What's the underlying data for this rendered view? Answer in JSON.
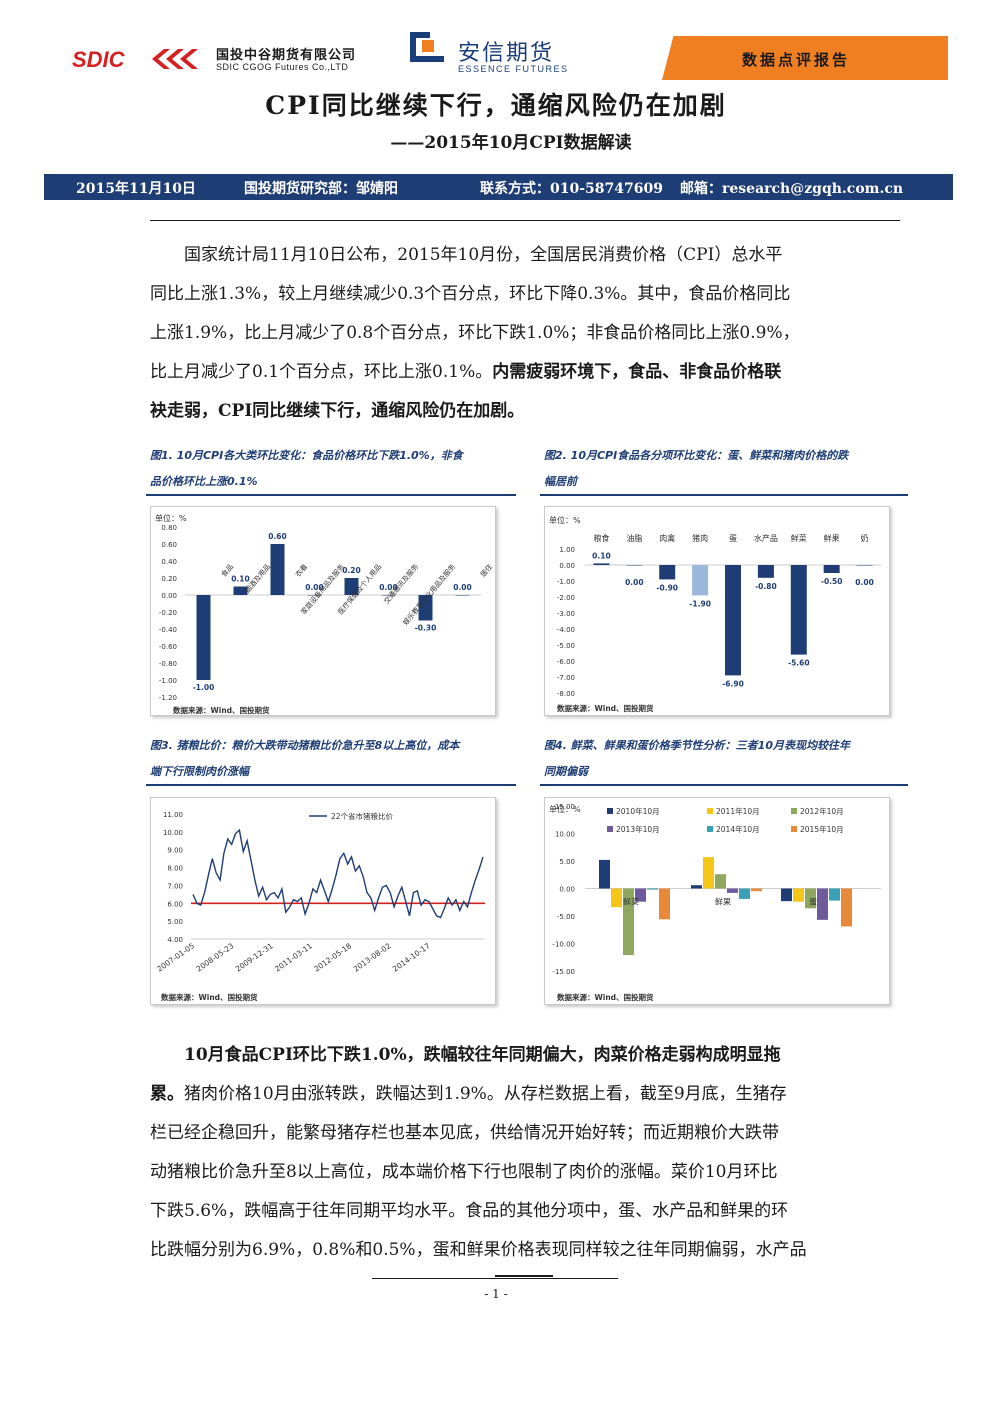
{
  "header": {
    "sdic_logo_text": "SDIC",
    "sdic_name": "国投中谷期货有限公司",
    "sdic_name_en": "SDIC CGOG Futures Co.,LTD",
    "essence_name": "安信期货",
    "essence_name_en": "ESSENCE FUTURES",
    "report_type": "数据点评报告"
  },
  "title": "CPI同比继续下行，通缩风险仍在加剧",
  "subtitle": "——2015年10月CPI数据解读",
  "info_bar": {
    "date": "2015年11月10日",
    "department": "国投期货研究部：邹婧阳",
    "contact": "联系方式：010-58747609",
    "email": "邮箱：research@zgqh.com.cn"
  },
  "paragraph1": {
    "lines": [
      "国家统计局11月10日公布，2015年10月份，全国居民消费价格（CPI）总水平",
      "同比上涨1.3%，较上月继续减少0.3个百分点，环比下降0.3%。其中，食品价格同比",
      "上涨1.9%，比上月减少了0.8个百分点，环比下跌1.0%；非食品价格同比上涨0.9%，"
    ],
    "line4_normal": "比上月减少了0.1个百分点，环比上涨0.1%。",
    "line4_bold": "内需疲弱环境下，食品、非食品价格联",
    "line5_bold": "袂走弱，CPI同比继续下行，通缩风险仍在加剧。"
  },
  "figures": {
    "fig1_caption": [
      "图1. 10月CPI各大类环比变化：食品价格环比下跌1.0%，非食",
      "品价格环比上涨0.1%"
    ],
    "fig2_caption": [
      "图2. 10月CPI食品各分项环比变化：蛋、鲜菜和猪肉价格的跌",
      "幅居前"
    ],
    "fig3_caption": [
      "图3. 猪粮比价：粮价大跌带动猪粮比价急升至8以上高位，成本",
      "端下行限制肉价涨幅"
    ],
    "fig4_caption": [
      "图4. 鲜菜、鲜果和蛋价格季节性分析：三者10月表现均较往年",
      "同期偏弱"
    ],
    "source": "数据来源：Wind、国投期货"
  },
  "chart_data": [
    {
      "type": "bar",
      "unit_label": "单位：%",
      "categories": [
        "食品",
        "烟酒及用品",
        "衣着",
        "家庭设备用品及服务",
        "医疗保健及个人用品",
        "交通通讯及服务",
        "娱乐教育文化用品及服务",
        "居住"
      ],
      "values": [
        -1.0,
        0.1,
        0.6,
        0.0,
        0.2,
        0.0,
        -0.3,
        0.0
      ],
      "data_labels": [
        "-1.00",
        "0.10",
        "0.60",
        "0.00",
        "0.20",
        "0.00",
        "-0.30",
        "0.00"
      ],
      "ylim": [
        -1.2,
        0.8
      ],
      "yticks": [
        "0.80",
        "0.60",
        "0.40",
        "0.20",
        "0.00",
        "-0.20",
        "-0.40",
        "-0.60",
        "-0.80",
        "-1.00",
        "-1.20"
      ],
      "color": "#1f3d75"
    },
    {
      "type": "bar",
      "unit_label": "单位：%",
      "categories": [
        "粮食",
        "油脂",
        "肉禽",
        "猪肉",
        "蛋",
        "水产品",
        "鲜菜",
        "鲜果",
        "奶"
      ],
      "values": [
        0.1,
        0.0,
        -0.9,
        -1.9,
        -6.9,
        -0.8,
        -5.6,
        -0.5,
        0.0
      ],
      "data_labels": [
        "0.10",
        "0.00",
        "-0.90",
        "-1.90",
        "-6.90",
        "-0.80",
        "-5.60",
        "-0.50",
        "0.00"
      ],
      "ylim": [
        -8,
        1
      ],
      "yticks": [
        "1.00",
        "0.00",
        "-1.00",
        "-2.00",
        "-3.00",
        "-4.00",
        "-5.00",
        "-6.00",
        "-7.00",
        "-8.00"
      ],
      "colors": [
        "#1f3d75",
        "#1f3d75",
        "#1f3d75",
        "#9bb7da",
        "#1f3d75",
        "#1f3d75",
        "#1f3d75",
        "#1f3d75",
        "#1f3d75"
      ]
    },
    {
      "type": "line",
      "legend": "22个省市猪粮比价",
      "x_tick_labels": [
        "2007-01-05",
        "2008-05-23",
        "2009-12-31",
        "2011-03-11",
        "2012-05-18",
        "2013-08-02",
        "2014-10-17"
      ],
      "ylim": [
        4,
        11
      ],
      "yticks": [
        "11.00",
        "10.00",
        "9.00",
        "8.00",
        "7.00",
        "6.00",
        "5.00",
        "4.00"
      ],
      "reference_line": 6.0,
      "reference_color": "#d42020",
      "line_color": "#1f3d75",
      "values": [
        6.5,
        6.0,
        5.9,
        6.6,
        7.6,
        8.5,
        7.7,
        7.3,
        8.8,
        9.6,
        9.3,
        9.9,
        10.1,
        8.9,
        9.5,
        8.4,
        7.3,
        6.4,
        6.9,
        6.2,
        6.5,
        6.6,
        6.3,
        6.8,
        5.5,
        5.8,
        6.2,
        6.1,
        6.3,
        5.4,
        6.0,
        6.8,
        6.6,
        7.3,
        6.7,
        6.1,
        6.8,
        7.6,
        8.5,
        8.8,
        8.2,
        8.6,
        7.8,
        8.1,
        7.5,
        6.6,
        6.3,
        5.6,
        6.3,
        6.9,
        7.0,
        6.6,
        5.8,
        6.4,
        6.9,
        6.1,
        5.3,
        6.6,
        6.7,
        5.9,
        6.2,
        6.1,
        5.7,
        5.3,
        5.2,
        5.7,
        6.3,
        5.9,
        6.2,
        5.6,
        6.1,
        5.8,
        6.6,
        7.3,
        7.9,
        8.6
      ]
    },
    {
      "type": "bar",
      "unit_label": "单位：%",
      "categories": [
        "鲜菜",
        "鲜果",
        "蛋"
      ],
      "series": [
        {
          "name": "2010年10月",
          "color": "#1f3d75",
          "values": [
            5.2,
            0.6,
            -2.3
          ]
        },
        {
          "name": "2011年10月",
          "color": "#f5c518",
          "values": [
            -3.4,
            5.7,
            -2.4
          ]
        },
        {
          "name": "2012年10月",
          "color": "#8fa860",
          "values": [
            -12.1,
            2.6,
            -3.6
          ]
        },
        {
          "name": "2013年10月",
          "color": "#6f5a9e",
          "values": [
            -2.4,
            -0.8,
            -5.7
          ]
        },
        {
          "name": "2014年10月",
          "color": "#3aa0b6",
          "values": [
            -0.2,
            -1.9,
            -2.2
          ]
        },
        {
          "name": "2015年10月",
          "color": "#e8893a",
          "values": [
            -5.6,
            -0.5,
            -6.9
          ]
        }
      ],
      "ylim": [
        -15,
        15
      ],
      "yticks": [
        "15.00",
        "10.00",
        "5.00",
        "0.00",
        "-5.00",
        "-10.00",
        "-15.00"
      ]
    }
  ],
  "paragraph2": {
    "line1_bold": "10月食品CPI环比下跌1.0%，跌幅较往年同期偏大，肉菜价格走弱构成明显拖",
    "line2_bold": "累。",
    "line2_normal": "猪肉价格10月由涨转跌，跌幅达到1.9%。从存栏数据上看，截至9月底，生猪存",
    "lines": [
      "栏已经企稳回升，能繁母猪存栏也基本见底，供给情况开始好转；而近期粮价大跌带",
      "动猪粮比价急升至8以上高位，成本端价格下行也限制了肉价的涨幅。菜价10月环比",
      "下跌5.6%，跌幅高于往年同期平均水平。食品的其他分项中，蛋、水产品和鲜果的环",
      "比跌幅分别为6.9%，0.8%和0.5%，蛋和鲜果价格表现同样较之往年同期偏弱，水产品"
    ]
  },
  "page_number": "- 1 -"
}
